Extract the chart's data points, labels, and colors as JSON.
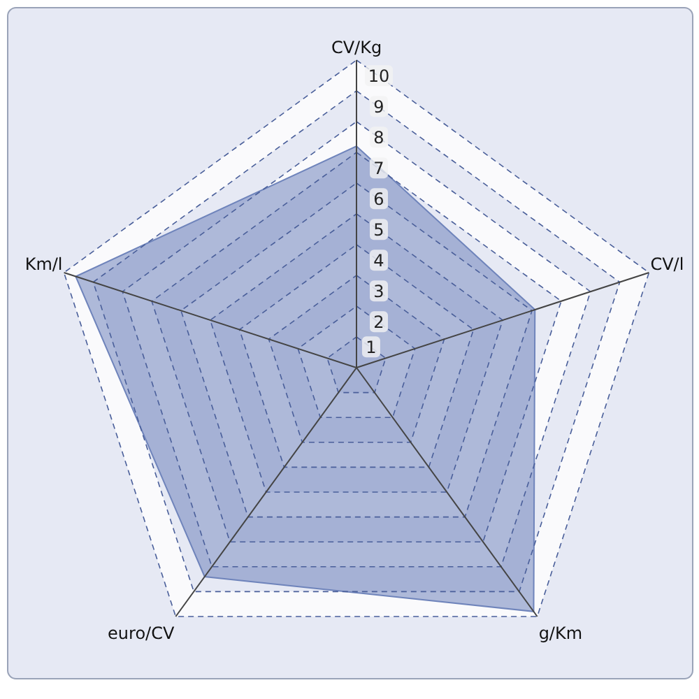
{
  "chart_data": {
    "type": "radar",
    "categories": [
      "CV/Kg",
      "CV/l",
      "g/Km",
      "euro/CV",
      "Km/l"
    ],
    "series": [
      {
        "color": "#6f84bb",
        "values": [
          7.2,
          6.1,
          9.8,
          8.4,
          9.6
        ]
      }
    ],
    "ylim": [
      0,
      10
    ],
    "yticks": [
      1,
      2,
      3,
      4,
      5,
      6,
      7,
      8,
      9,
      10
    ],
    "grid": true
  }
}
